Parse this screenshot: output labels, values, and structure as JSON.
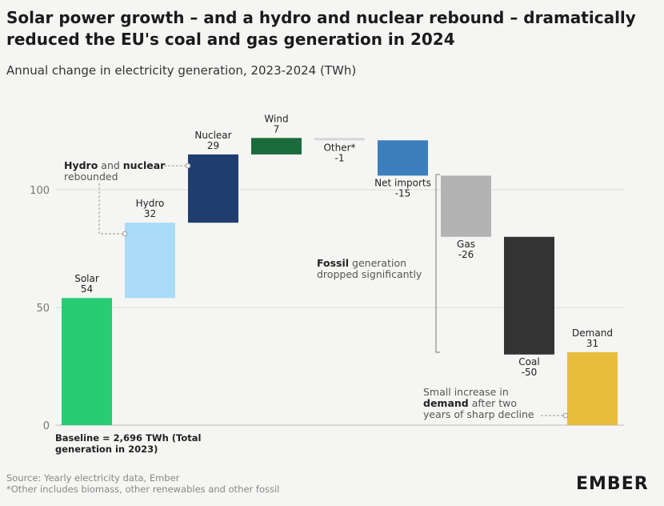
{
  "title": "Solar power growth – and a hydro and nuclear rebound – dramatically reduced the EU's coal and gas generation in 2024",
  "subtitle": "Annual change in electricity generation, 2023-2024 (TWh)",
  "source": "Source: Yearly electricity data, Ember",
  "footnote": "*Other includes biomass, other renewables and other fossil",
  "logo": "EMBER",
  "annotations": {
    "hydro_nuclear_bold1": "Hydro",
    "hydro_nuclear_mid": " and ",
    "hydro_nuclear_bold2": "nuclear",
    "hydro_nuclear_line2": "rebounded",
    "fossil_bold": "Fossil",
    "fossil_rest": " generation",
    "fossil_line2": "dropped significantly",
    "demand_line1": "Small increase in",
    "demand_bold": "demand",
    "demand_rest": " after two",
    "demand_line3": "years of sharp decline",
    "baseline_line1": "Baseline = 2,696 TWh (Total",
    "baseline_line2": "generation in 2023)"
  },
  "chart_data": {
    "type": "bar",
    "subtype": "waterfall",
    "ylim": [
      0,
      130
    ],
    "yticks": [
      0,
      50,
      100
    ],
    "grid": true,
    "colors": {
      "Solar": "#27cc73",
      "Hydro": "#a9dbf7",
      "Nuclear": "#1f3d6e",
      "Wind": "#1c6b3c",
      "Other*": "#d6d6d6",
      "Net imports": "#3b7fbd",
      "Gas": "#b3b3b3",
      "Coal": "#333333",
      "Demand": "#e8bd3c"
    },
    "categories": [
      "Solar",
      "Hydro",
      "Nuclear",
      "Wind",
      "Other*",
      "Net imports",
      "Gas",
      "Coal",
      "Demand"
    ],
    "values": [
      54,
      32,
      29,
      7,
      -1,
      -15,
      -26,
      -50,
      31
    ],
    "value_labels": [
      "54",
      "32",
      "29",
      "7",
      "-1",
      "-15",
      "-26",
      "-50",
      "31"
    ],
    "total_category": "Demand"
  }
}
